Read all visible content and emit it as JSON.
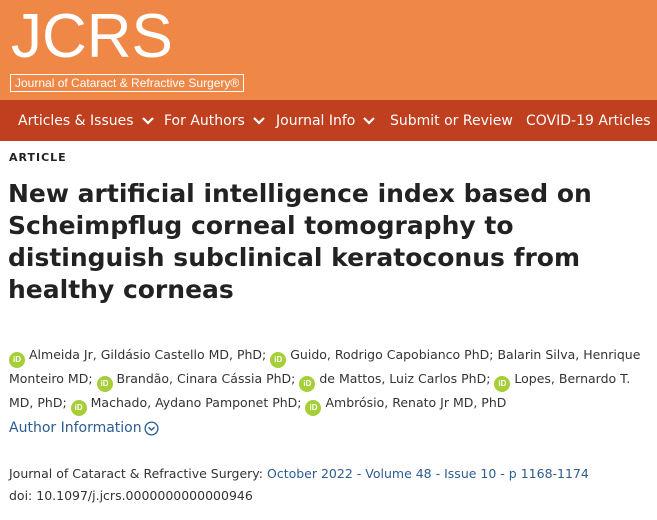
{
  "header": {
    "logo": "JCRS",
    "journal_name": "Journal of Cataract & Refractive Surgery®",
    "bg_color": "#ef8847"
  },
  "nav": {
    "bg_color": "#bf3f1f",
    "items": [
      {
        "label": "Articles & Issues",
        "dropdown": true
      },
      {
        "label": "For Authors",
        "dropdown": true
      },
      {
        "label": "Journal Info",
        "dropdown": true
      },
      {
        "label": "Submit or Review",
        "dropdown": false
      },
      {
        "label": "COVID-19 Articles",
        "dropdown": false
      }
    ]
  },
  "article": {
    "type_label": "ARTICLE",
    "title": "New artificial intelligence index based on Scheimpflug corneal tomography to distinguish subclinical keratoconus from healthy corneas",
    "authors": [
      "Almeida Jr, Gildásio Castello MD, PhD",
      "Guido, Rodrigo Capobianco PhD",
      "Balarin Silva, Henrique Monteiro MD",
      "Brandão, Cinara Cássia PhD",
      "de Mattos, Luiz Carlos PhD",
      "Lopes, Bernardo T. MD, PhD",
      "Machado, Aydano Pamponet PhD",
      "Ambrósio, Renato Jr MD, PhD"
    ],
    "orcid_label": "iD",
    "author_info_label": "Author Information",
    "citation": {
      "journal": "Journal of Cataract & Refractive Surgery: ",
      "date": "October 2022",
      "sep1": " - ",
      "volume": "Volume 48",
      "sep2": " - ",
      "issue": "Issue 10",
      "sep3": " - ",
      "pages": "p 1168-1174"
    },
    "doi": "doi: 10.1097/j.jcrs.0000000000000946"
  },
  "colors": {
    "link": "#2c5c92",
    "orcid": "#a6ce39"
  }
}
